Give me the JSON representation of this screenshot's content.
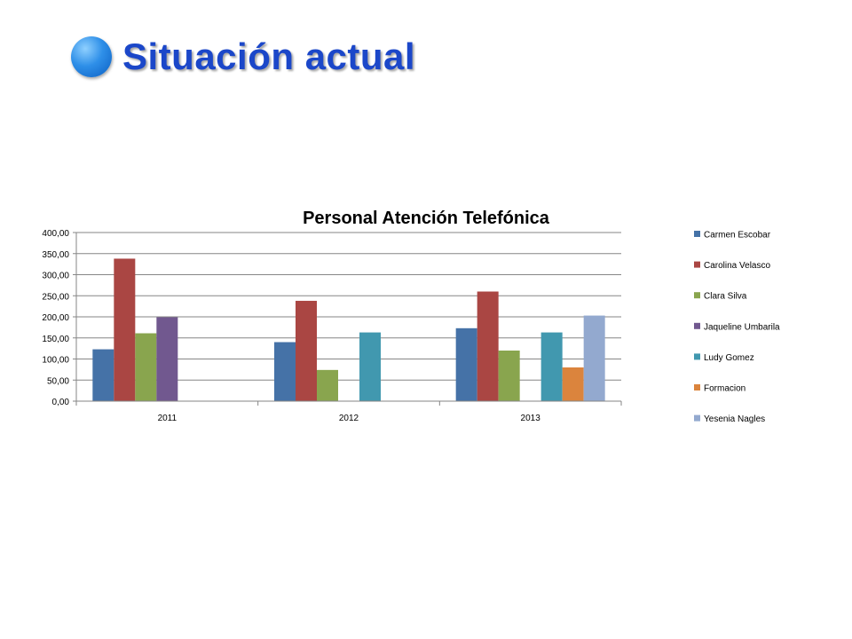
{
  "slide": {
    "title": "Situación actual"
  },
  "colors": {
    "title": "#1b47c9",
    "bullet": "#2e8fe8"
  },
  "chart_data": {
    "type": "bar",
    "title": "Personal Atención Telefónica",
    "xlabel": "",
    "ylabel": "",
    "categories": [
      "2011",
      "2012",
      "2013"
    ],
    "ylim": [
      0,
      400
    ],
    "yticks": [
      "0,00",
      "50,00",
      "100,00",
      "150,00",
      "200,00",
      "250,00",
      "300,00",
      "350,00",
      "400,00"
    ],
    "grid": true,
    "legend_position": "right",
    "series": [
      {
        "name": "Carmen Escobar",
        "color": "#4572a7",
        "values": [
          123,
          140,
          173
        ]
      },
      {
        "name": "Carolina Velasco",
        "color": "#aa4643",
        "values": [
          338,
          238,
          260
        ]
      },
      {
        "name": "Clara Silva",
        "color": "#89a54e",
        "values": [
          161,
          74,
          120
        ]
      },
      {
        "name": "Jaqueline Umbarila",
        "color": "#71588f",
        "values": [
          199,
          null,
          null
        ]
      },
      {
        "name": "Ludy Gomez",
        "color": "#4198af",
        "values": [
          null,
          163,
          163
        ]
      },
      {
        "name": "Formacion",
        "color": "#db843d",
        "values": [
          null,
          null,
          80
        ]
      },
      {
        "name": "Yesenia Nagles",
        "color": "#93a9cf",
        "values": [
          null,
          null,
          203
        ]
      }
    ]
  }
}
